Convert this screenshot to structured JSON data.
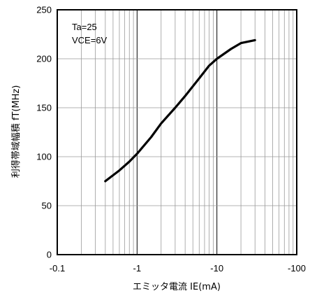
{
  "chart_data": {
    "type": "line",
    "x_scale": "log",
    "x_reversed_sign": true,
    "xlim": [
      -0.1,
      -100
    ],
    "ylim": [
      0,
      250
    ],
    "xticks": [
      -0.1,
      -1,
      -10,
      -100
    ],
    "xtick_labels": [
      "-0.1",
      "-1",
      "-10",
      "-100"
    ],
    "yticks": [
      0,
      50,
      100,
      150,
      200,
      250
    ],
    "ytick_labels": [
      "0",
      "50",
      "100",
      "150",
      "200",
      "250"
    ],
    "xlabel": "エミッタ電流  IE(mA)",
    "ylabel": "利得帯域幅積  fT(MHz)",
    "annotations": [
      "Ta=25",
      "VCE=6V"
    ],
    "grid": true,
    "series": [
      {
        "color": "#000000",
        "x": [
          -0.4,
          -0.6,
          -0.8,
          -1,
          -1.5,
          -2,
          -3,
          -4,
          -6,
          -8,
          -10,
          -15,
          -20,
          -30
        ],
        "y": [
          75,
          86,
          95,
          103,
          120,
          134,
          150,
          162,
          180,
          193,
          200,
          210,
          216,
          219
        ]
      }
    ]
  }
}
